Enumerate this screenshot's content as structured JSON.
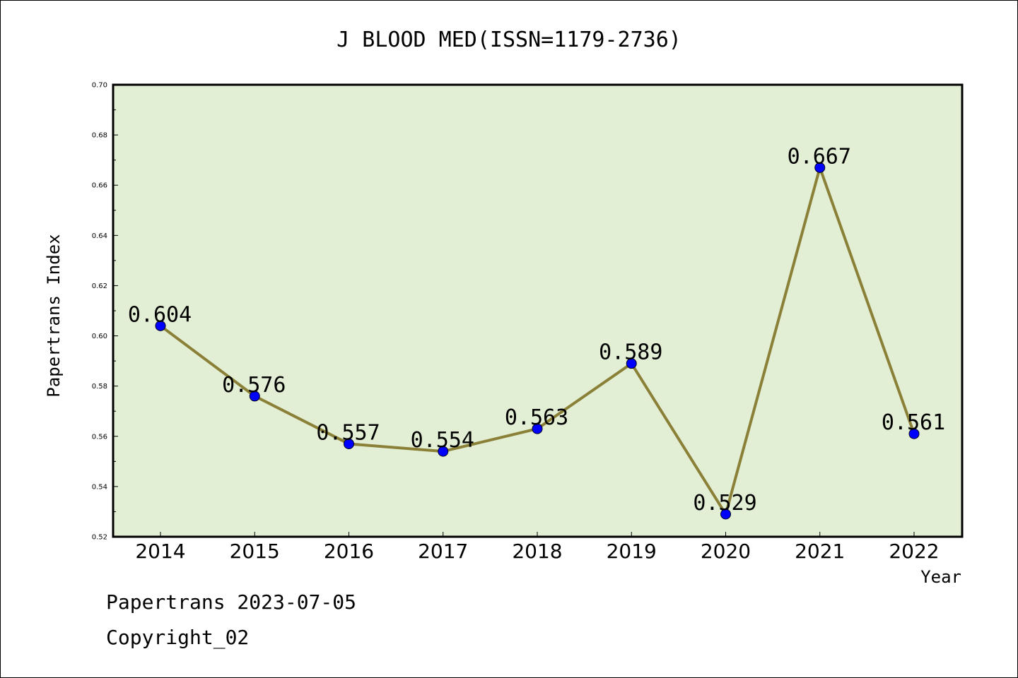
{
  "chart_data": {
    "type": "line",
    "title": "J BLOOD MED(ISSN=1179-2736)",
    "xlabel": "Year",
    "ylabel": "Papertrans Index",
    "categories": [
      "2014",
      "2015",
      "2016",
      "2017",
      "2018",
      "2019",
      "2020",
      "2021",
      "2022"
    ],
    "values": [
      0.604,
      0.576,
      0.557,
      0.554,
      0.563,
      0.589,
      0.529,
      0.667,
      0.561
    ],
    "data_labels": [
      "0.604",
      "0.576",
      "0.557",
      "0.554",
      "0.563",
      "0.589",
      "0.529",
      "0.667",
      "0.561"
    ],
    "ylim": [
      0.52,
      0.7
    ],
    "yticks": [
      "0.52",
      "0.54",
      "0.56",
      "0.58",
      "0.60",
      "0.62",
      "0.64",
      "0.66",
      "0.68",
      "0.70"
    ],
    "grid": false,
    "legend": "none",
    "colors": {
      "plot_background": "#e2efd5",
      "line": "#8b8037",
      "marker": "#0000ff"
    }
  },
  "footer": {
    "source": "Papertrans 2023-07-05",
    "copyright": "Copyright_02"
  }
}
